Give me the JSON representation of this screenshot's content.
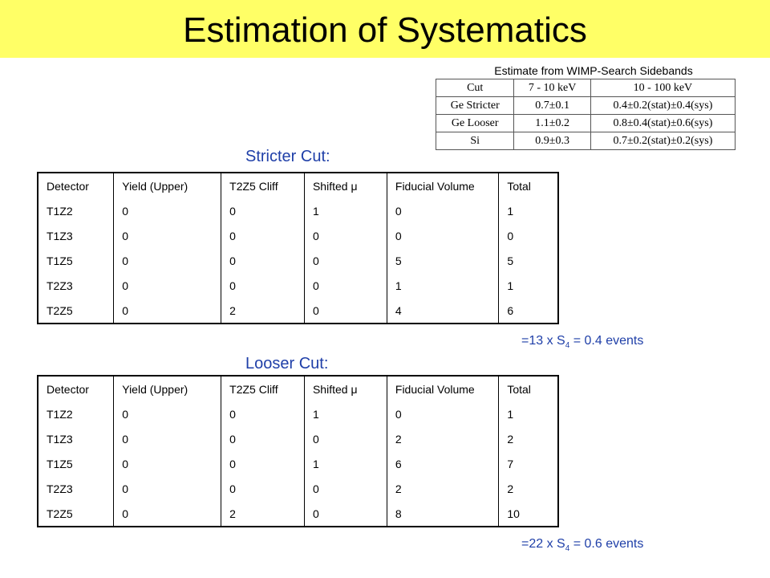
{
  "title": "Estimation of Systematics",
  "inset": {
    "caption": "Estimate from WIMP-Search Sidebands",
    "headers": [
      "Cut",
      "7 - 10 keV",
      "10 - 100 keV"
    ],
    "rows": [
      [
        "Ge Stricter",
        "0.7±0.1",
        "0.4±0.2(stat)±0.4(sys)"
      ],
      [
        "Ge Looser",
        "1.1±0.2",
        "0.8±0.4(stat)±0.6(sys)"
      ],
      [
        "Si",
        "0.9±0.3",
        "0.7±0.2(stat)±0.2(sys)"
      ]
    ]
  },
  "stricter": {
    "label": "Stricter Cut:",
    "headers": [
      "Detector",
      "Yield (Upper)",
      "T2Z5 Cliff",
      "Shifted μ",
      "Fiducial Volume",
      "Total"
    ],
    "rows": [
      [
        "T1Z2",
        "0",
        "0",
        "1",
        "0",
        "1"
      ],
      [
        "T1Z3",
        "0",
        "0",
        "0",
        "0",
        "0"
      ],
      [
        "T1Z5",
        "0",
        "0",
        "0",
        "5",
        "5"
      ],
      [
        "T2Z3",
        "0",
        "0",
        "0",
        "1",
        "1"
      ],
      [
        "T2Z5",
        "0",
        "2",
        "0",
        "4",
        "6"
      ]
    ],
    "note_prefix": "=13 x S",
    "note_sub": "4",
    "note_suffix": " = 0.4 events"
  },
  "looser": {
    "label": "Looser Cut:",
    "headers": [
      "Detector",
      "Yield (Upper)",
      "T2Z5 Cliff",
      "Shifted μ",
      "Fiducial Volume",
      "Total"
    ],
    "rows": [
      [
        "T1Z2",
        "0",
        "0",
        "1",
        "0",
        "1"
      ],
      [
        "T1Z3",
        "0",
        "0",
        "0",
        "2",
        "2"
      ],
      [
        "T1Z5",
        "0",
        "0",
        "1",
        "6",
        "7"
      ],
      [
        "T2Z3",
        "0",
        "0",
        "0",
        "2",
        "2"
      ],
      [
        "T2Z5",
        "0",
        "2",
        "0",
        "8",
        "10"
      ]
    ],
    "note_prefix": "=22 x S",
    "note_sub": "4",
    "note_suffix": " = 0.6 events"
  },
  "colors": {
    "title_bar": "#ffff66",
    "label_blue": "#1f3fa8"
  }
}
